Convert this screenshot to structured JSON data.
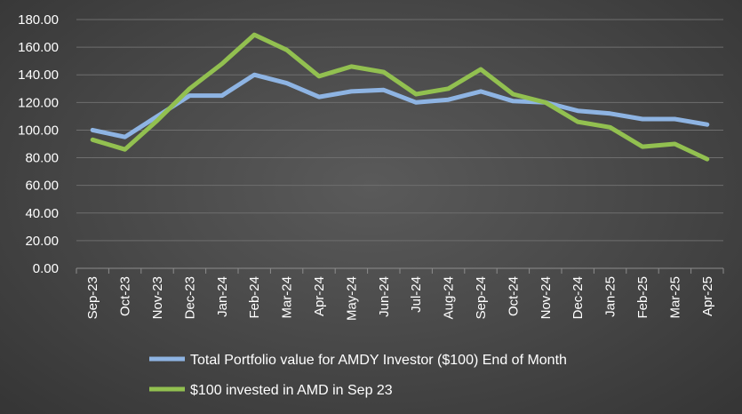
{
  "chart_data": {
    "type": "line",
    "categories": [
      "Sep-23",
      "Oct-23",
      "Nov-23",
      "Dec-23",
      "Jan-24",
      "Feb-24",
      "Mar-24",
      "Apr-24",
      "May-24",
      "Jun-24",
      "Jul-24",
      "Aug-24",
      "Sep-24",
      "Oct-24",
      "Nov-24",
      "Dec-24",
      "Jan-25",
      "Feb-25",
      "Mar-25",
      "Apr-25"
    ],
    "ylim": [
      0,
      180
    ],
    "yticks": [
      "0.00",
      "20.00",
      "40.00",
      "60.00",
      "80.00",
      "100.00",
      "120.00",
      "140.00",
      "160.00",
      "180.00"
    ],
    "grid": true,
    "legend_position": "bottom",
    "series": [
      {
        "name": "Total Portfolio value for AMDY Investor ($100) End of Month",
        "color": "#8eb4e3",
        "values": [
          100,
          95,
          110,
          125,
          125,
          140,
          134,
          124,
          128,
          129,
          120,
          122,
          128,
          121,
          120,
          114,
          112,
          108,
          108,
          104
        ]
      },
      {
        "name": "$100 invested in AMD in Sep 23",
        "color": "#92c050",
        "values": [
          93,
          86,
          107,
          130,
          148,
          169,
          158,
          139,
          146,
          142,
          126,
          130,
          144,
          126,
          120,
          106,
          102,
          88,
          90,
          79
        ]
      }
    ]
  }
}
